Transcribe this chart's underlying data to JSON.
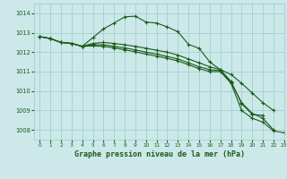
{
  "title": "Graphe pression niveau de la mer (hPa)",
  "bg_color": "#cce8e8",
  "grid_color": "#99cccc",
  "line_color": "#1a5c1a",
  "xlim": [
    -0.5,
    23
  ],
  "ylim": [
    1007.5,
    1014.5
  ],
  "yticks": [
    1008,
    1009,
    1010,
    1011,
    1012,
    1013,
    1014
  ],
  "xticks": [
    0,
    1,
    2,
    3,
    4,
    5,
    6,
    7,
    8,
    9,
    10,
    11,
    12,
    13,
    14,
    15,
    16,
    17,
    18,
    19,
    20,
    21,
    22,
    23
  ],
  "lines": [
    {
      "x": [
        0,
        1,
        2,
        3,
        4,
        5,
        6,
        7,
        8,
        9,
        10,
        11,
        12,
        13,
        14,
        15,
        16,
        17,
        18,
        19,
        20,
        21
      ],
      "y": [
        1012.8,
        1012.7,
        1012.5,
        1012.45,
        1012.3,
        1012.75,
        1013.2,
        1013.5,
        1013.82,
        1013.85,
        1013.55,
        1013.5,
        1013.3,
        1013.05,
        1012.4,
        1012.2,
        1011.5,
        1011.1,
        1010.5,
        1009.35,
        1008.8,
        1008.75
      ]
    },
    {
      "x": [
        0,
        1,
        2,
        3,
        4,
        5,
        6,
        7,
        8,
        9,
        10,
        11,
        12,
        13,
        14,
        15,
        16,
        17,
        18,
        19,
        20,
        21,
        22
      ],
      "y": [
        1012.8,
        1012.7,
        1012.5,
        1012.45,
        1012.3,
        1012.45,
        1012.5,
        1012.45,
        1012.38,
        1012.3,
        1012.2,
        1012.1,
        1012.0,
        1011.85,
        1011.65,
        1011.45,
        1011.25,
        1011.1,
        1010.85,
        1010.4,
        1009.9,
        1009.4,
        1009.0
      ]
    },
    {
      "x": [
        0,
        1,
        2,
        3,
        4,
        5,
        6,
        7,
        8,
        9,
        10,
        11,
        12,
        13,
        14,
        15,
        16,
        17,
        18,
        19,
        20,
        21,
        22
      ],
      "y": [
        1012.8,
        1012.7,
        1012.5,
        1012.45,
        1012.3,
        1012.38,
        1012.38,
        1012.3,
        1012.22,
        1012.12,
        1012.0,
        1011.9,
        1011.78,
        1011.65,
        1011.45,
        1011.25,
        1011.1,
        1011.05,
        1010.45,
        1009.4,
        1008.85,
        1008.6,
        1008.0
      ]
    },
    {
      "x": [
        0,
        1,
        2,
        3,
        4,
        5,
        6,
        7,
        8,
        9,
        10,
        11,
        12,
        13,
        14,
        15,
        16,
        17,
        18,
        19,
        20,
        21,
        22,
        23
      ],
      "y": [
        1012.8,
        1012.7,
        1012.5,
        1012.45,
        1012.3,
        1012.32,
        1012.3,
        1012.22,
        1012.12,
        1012.02,
        1011.9,
        1011.8,
        1011.68,
        1011.55,
        1011.35,
        1011.15,
        1011.0,
        1011.0,
        1010.4,
        1009.0,
        1008.6,
        1008.4,
        1007.95,
        1007.85
      ]
    }
  ]
}
